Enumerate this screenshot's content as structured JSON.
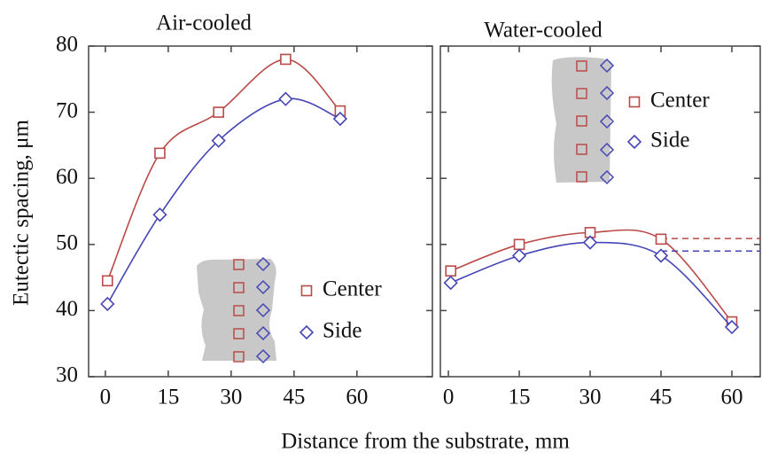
{
  "chart_data": [
    {
      "type": "line",
      "title": "Air-cooled",
      "ylabel": "Eutectic spacing, μm",
      "xlabel": "Distance from the substrate, mm",
      "xlim": [
        -4,
        78
      ],
      "xticks": [
        0,
        15,
        30,
        45,
        60
      ],
      "ylim": [
        30,
        80
      ],
      "yticks": [
        30,
        40,
        50,
        60,
        70,
        80
      ],
      "legend": "lower right",
      "series": [
        {
          "name": "Center",
          "color": "#b94a48",
          "marker": "square",
          "x": [
            0.5,
            13,
            27,
            43,
            56
          ],
          "values": [
            44.5,
            63.8,
            70,
            78,
            70.2
          ]
        },
        {
          "name": "Side",
          "color": "#4545b5",
          "marker": "diamond",
          "x": [
            0.5,
            13,
            27,
            43,
            56
          ],
          "values": [
            41,
            54.5,
            65.7,
            72,
            69
          ]
        }
      ]
    },
    {
      "type": "line",
      "title": "Water-cooled",
      "xlim": [
        -1.7,
        66
      ],
      "xticks": [
        0,
        15,
        30,
        45,
        60
      ],
      "ylim": [
        30,
        80
      ],
      "yticks": [
        30,
        40,
        50,
        60,
        70,
        80
      ],
      "ytick_labels": false,
      "legend": "upper right",
      "series": [
        {
          "name": "Center",
          "color": "#b94a48",
          "marker": "square",
          "x": [
            0.5,
            15,
            30,
            45,
            60
          ],
          "values": [
            46,
            50,
            51.8,
            50.8,
            38.3
          ],
          "dashed_level": 50.9
        },
        {
          "name": "Side",
          "color": "#4545b5",
          "marker": "diamond",
          "x": [
            0.5,
            15,
            30,
            45,
            60
          ],
          "values": [
            44.2,
            48.3,
            50.3,
            48.3,
            37.5
          ],
          "dashed_level": 49
        }
      ]
    }
  ]
}
